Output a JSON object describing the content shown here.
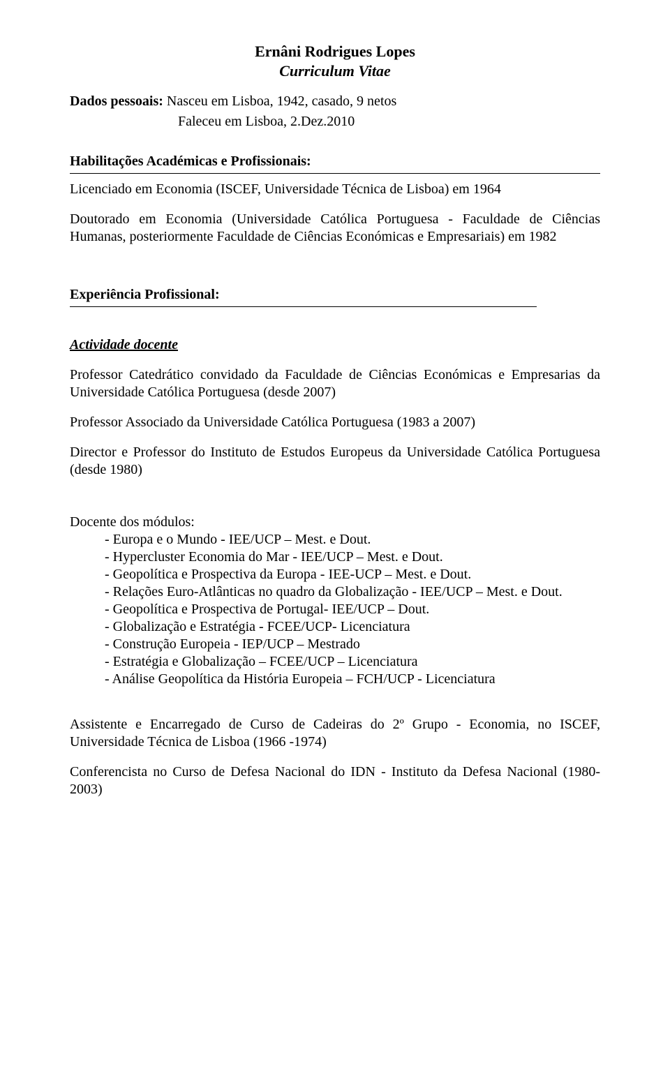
{
  "title": "Ernâni Rodrigues Lopes",
  "subtitle": "Curriculum Vitae",
  "personal": {
    "label": "Dados pessoais:",
    "birth": " Nasceu em Lisboa, 1942, casado, 9 netos",
    "death": "Faleceu em Lisboa, 2.Dez.2010"
  },
  "qualifications": {
    "heading": "Habilitações Académicas e Profissionais:",
    "degree1": "Licenciado em Economia (ISCEF, Universidade Técnica de Lisboa) em 1964",
    "degree2": "Doutorado em Economia (Universidade Católica Portuguesa - Faculdade de Ciências Humanas, posteriormente Faculdade de Ciências Económicas e Empresariais) em 1982"
  },
  "experience": {
    "heading": "Experiência Profissional:",
    "teaching_heading": "Actividade docente",
    "p1": "Professor Catedrático convidado da Faculdade de Ciências Económicas e Empresarias da Universidade Católica Portuguesa (desde 2007)",
    "p2": "Professor Associado da Universidade Católica Portuguesa (1983 a 2007)",
    "p3": "Director e Professor do Instituto de Estudos Europeus da Universidade Católica Portuguesa (desde 1980)",
    "modules_label": "Docente dos módulos:",
    "modules": [
      "- Europa e o Mundo - IEE/UCP – Mest. e Dout.",
      "- Hypercluster Economia do Mar - IEE/UCP – Mest. e Dout.",
      "- Geopolítica e Prospectiva da Europa - IEE-UCP – Mest. e Dout.",
      "- Relações Euro-Atlânticas no quadro da Globalização - IEE/UCP – Mest. e Dout.",
      "- Geopolítica e Prospectiva de Portugal- IEE/UCP – Dout.",
      "- Globalização e Estratégia - FCEE/UCP- Licenciatura",
      "- Construção Europeia - IEP/UCP – Mestrado",
      "- Estratégia e Globalização – FCEE/UCP – Licenciatura",
      "- Análise Geopolítica da História Europeia – FCH/UCP - Licenciatura"
    ],
    "p4": "Assistente e Encarregado de Curso de Cadeiras do 2º Grupo - Economia, no ISCEF, Universidade Técnica de Lisboa (1966 -1974)",
    "p5": "Conferencista no Curso de Defesa Nacional do IDN - Instituto da Defesa Nacional (1980-2003)"
  }
}
